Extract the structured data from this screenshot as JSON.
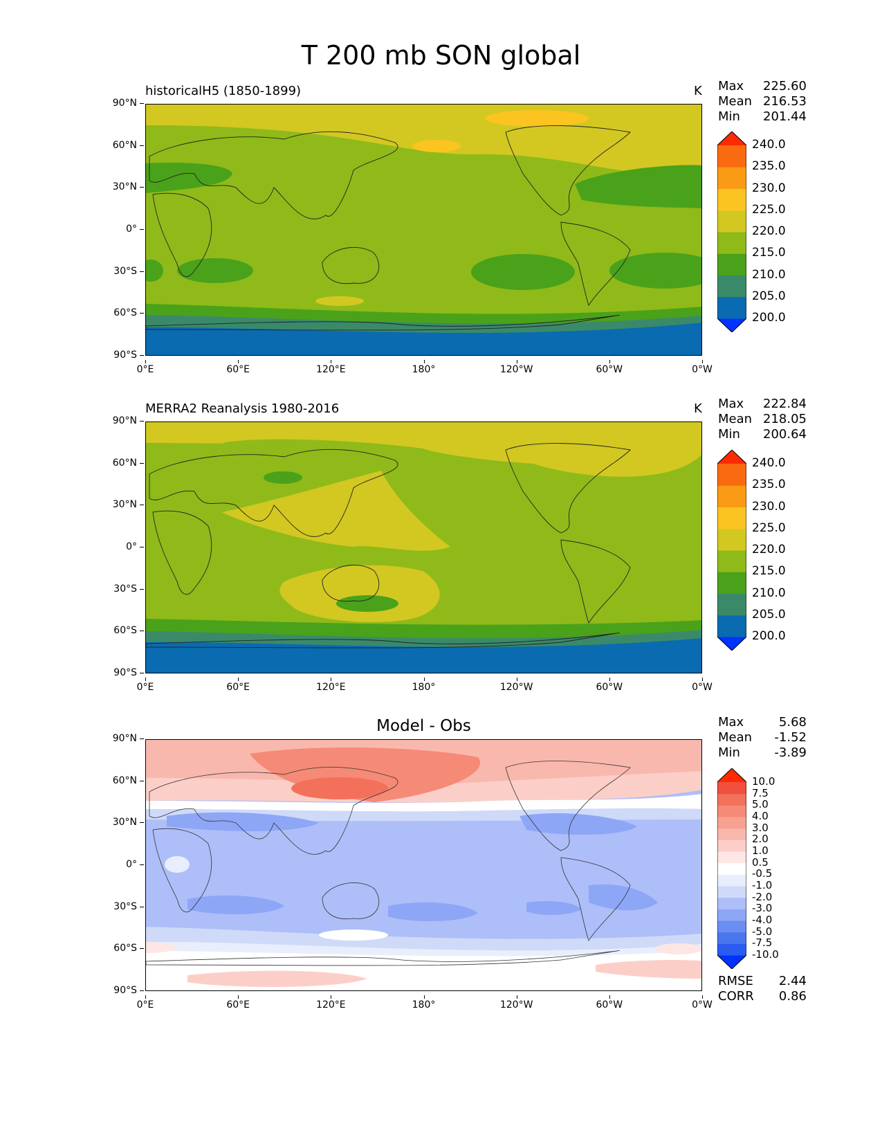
{
  "figure_title": "T 200 mb SON global",
  "panels": [
    {
      "title_left": "historicalH5 (1850-1899)",
      "unit": "K",
      "stats": [
        {
          "label": "Max",
          "value": "225.60"
        },
        {
          "label": "Mean",
          "value": "216.53"
        },
        {
          "label": "Min",
          "value": "201.44"
        }
      ],
      "colorbar": {
        "colors": [
          "#0033ff",
          "#0a6bb0",
          "#3a8a6a",
          "#4aa21a",
          "#8fba1a",
          "#d2c821",
          "#fcc420",
          "#fb9a14",
          "#fa6a10",
          "#fe2a02"
        ],
        "labels": [
          "200.0",
          "205.0",
          "210.0",
          "215.0",
          "220.0",
          "225.0",
          "230.0",
          "235.0",
          "240.0"
        ]
      }
    },
    {
      "title_left": "MERRA2 Reanalysis 1980-2016",
      "unit": "K",
      "stats": [
        {
          "label": "Max",
          "value": "222.84"
        },
        {
          "label": "Mean",
          "value": "218.05"
        },
        {
          "label": "Min",
          "value": "200.64"
        }
      ],
      "colorbar": {
        "colors": [
          "#0033ff",
          "#0a6bb0",
          "#3a8a6a",
          "#4aa21a",
          "#8fba1a",
          "#d2c821",
          "#fcc420",
          "#fb9a14",
          "#fa6a10",
          "#fe2a02"
        ],
        "labels": [
          "200.0",
          "205.0",
          "210.0",
          "215.0",
          "220.0",
          "225.0",
          "230.0",
          "235.0",
          "240.0"
        ]
      }
    },
    {
      "title_center": "Model - Obs",
      "stats": [
        {
          "label": "Max",
          "value": "5.68"
        },
        {
          "label": "Mean",
          "value": "-1.52"
        },
        {
          "label": "Min",
          "value": "-3.89"
        }
      ],
      "colorbar": {
        "colors": [
          "#0033ff",
          "#2a5cf0",
          "#4a76ee",
          "#6a8ef2",
          "#8ea6f6",
          "#aebef8",
          "#cfdaf9",
          "#e8eefc",
          "#ffffff",
          "#fde6e4",
          "#fbcfc8",
          "#f9b8ad",
          "#f7a191",
          "#f58a77",
          "#f3705b",
          "#f0503d",
          "#fe2a02"
        ],
        "labels": [
          "-10.0",
          "-7.5",
          "-5.0",
          "-4.0",
          "-3.0",
          "-2.0",
          "-1.0",
          "-0.5",
          "0.5",
          "1.0",
          "2.0",
          "3.0",
          "4.0",
          "5.0",
          "7.5",
          "10.0"
        ]
      },
      "metrics": [
        {
          "label": "RMSE",
          "value": "2.44"
        },
        {
          "label": "CORR",
          "value": "0.86"
        }
      ]
    }
  ],
  "axes": {
    "lat_ticks": [
      "90°N",
      "60°N",
      "30°N",
      "0°",
      "30°S",
      "60°S",
      "90°S"
    ],
    "lon_ticks": [
      "0°E",
      "60°E",
      "120°E",
      "180°",
      "120°W",
      "60°W",
      "0°W"
    ]
  }
}
